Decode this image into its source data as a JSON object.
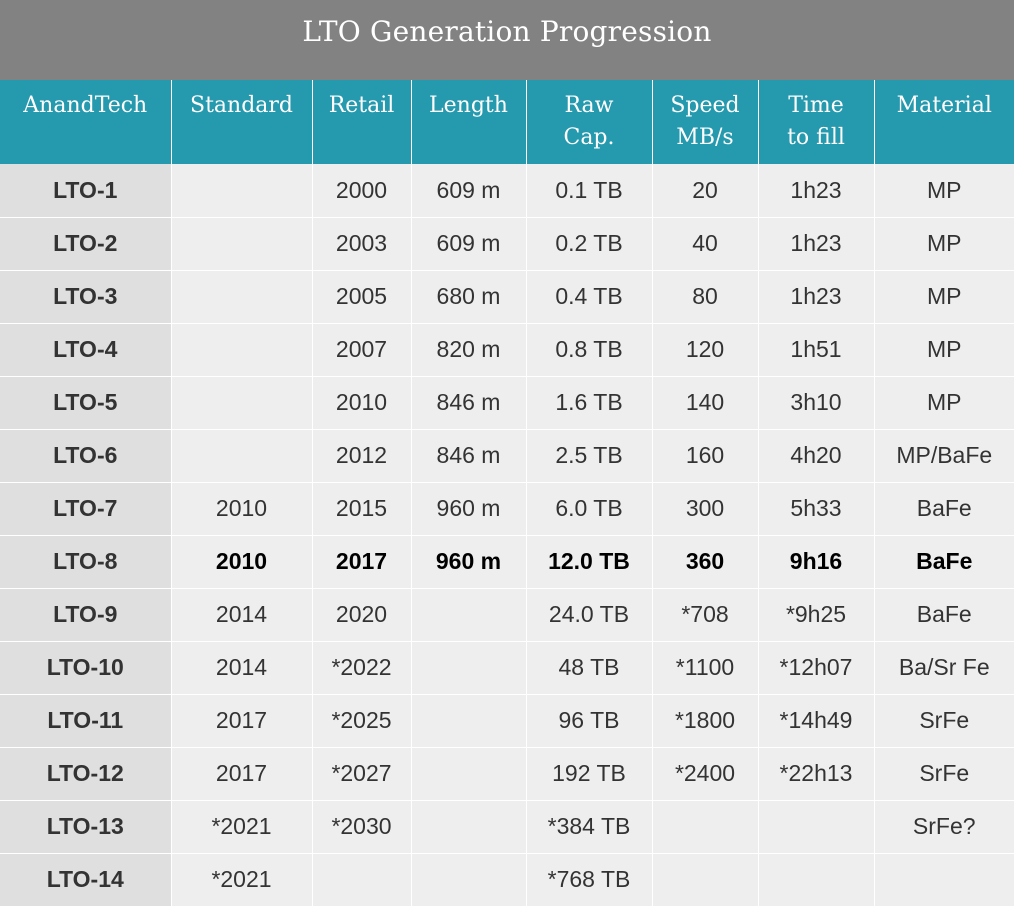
{
  "title": "LTO Generation Progression",
  "headers": {
    "col0": "AnandTech",
    "col1": "Standard",
    "col2": "Retail",
    "col3": "Length",
    "col4_line1": "Raw",
    "col4_line2": "Cap.",
    "col5_line1": "Speed",
    "col5_line2": "MB/s",
    "col6_line1": "Time",
    "col6_line2": "to fill",
    "col7": "Material"
  },
  "rows": [
    [
      "LTO-1",
      "",
      "2000",
      "609 m",
      "0.1 TB",
      "20",
      "1h23",
      "MP"
    ],
    [
      "LTO-2",
      "",
      "2003",
      "609 m",
      "0.2 TB",
      "40",
      "1h23",
      "MP"
    ],
    [
      "LTO-3",
      "",
      "2005",
      "680 m",
      "0.4 TB",
      "80",
      "1h23",
      "MP"
    ],
    [
      "LTO-4",
      "",
      "2007",
      "820 m",
      "0.8 TB",
      "120",
      "1h51",
      "MP"
    ],
    [
      "LTO-5",
      "",
      "2010",
      "846 m",
      "1.6 TB",
      "140",
      "3h10",
      "MP"
    ],
    [
      "LTO-6",
      "",
      "2012",
      "846 m",
      "2.5 TB",
      "160",
      "4h20",
      "MP/BaFe"
    ],
    [
      "LTO-7",
      "2010",
      "2015",
      "960 m",
      "6.0 TB",
      "300",
      "5h33",
      "BaFe"
    ],
    [
      "LTO-8",
      "2010",
      "2017",
      "960 m",
      "12.0 TB",
      "360",
      "9h16",
      "BaFe"
    ],
    [
      "LTO-9",
      "2014",
      "2020",
      "",
      "24.0 TB",
      "*708",
      "*9h25",
      "BaFe"
    ],
    [
      "LTO-10",
      "2014",
      "*2022",
      "",
      "48 TB",
      "*1100",
      "*12h07",
      "Ba/Sr Fe"
    ],
    [
      "LTO-11",
      "2017",
      "*2025",
      "",
      "96 TB",
      "*1800",
      "*14h49",
      "SrFe"
    ],
    [
      "LTO-12",
      "2017",
      "*2027",
      "",
      "192 TB",
      "*2400",
      "*22h13",
      "SrFe"
    ],
    [
      "LTO-13",
      "*2021",
      "*2030",
      "",
      "*384 TB",
      "",
      "",
      "SrFe?"
    ],
    [
      "LTO-14",
      "*2021",
      "",
      "",
      "*768 TB",
      "",
      "",
      ""
    ]
  ],
  "highlight_row": "LTO-8",
  "colors": {
    "title_bg": "#828282",
    "header_bg": "#2599ad",
    "cell_bg": "#eeeeee",
    "first_col_bg": "#dfdfdf"
  }
}
